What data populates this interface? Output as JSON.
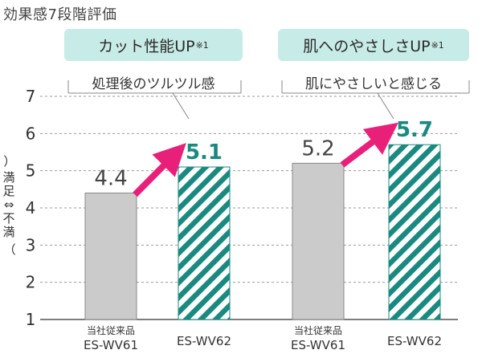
{
  "heading": "効果感7段階評価",
  "groups": [
    {
      "banner": "カット性能UP",
      "banner_note": "※1",
      "caption": "処理後のツルツル感"
    },
    {
      "banner": "肌へのやさしさUP",
      "banner_note": "※1",
      "caption": "肌にやさしいと感じる"
    }
  ],
  "y_axis_label": [
    "満",
    "足",
    "⇔",
    "不",
    "満"
  ],
  "colors": {
    "banner_bg": "#c7ebe6",
    "legacy_bar": "#cbcbcb",
    "new_bar_stripe": "#1a8a80",
    "new_value_text": "#1a8a80",
    "arrow": "#e8207a"
  },
  "chart_data": {
    "type": "bar",
    "ylim": [
      1,
      7
    ],
    "y_ticks": [
      1,
      2,
      3,
      4,
      5,
      6,
      7
    ],
    "grid": true,
    "groups": [
      {
        "title": "カット性能UP※1 処理後のツルツル感",
        "bars": [
          {
            "label_top": "当社従来品",
            "label": "ES-WV61",
            "value": 4.4,
            "value_text": "4.4",
            "style": "solid-gray"
          },
          {
            "label_top": "",
            "label": "ES-WV62",
            "value": 5.1,
            "value_text": "5.1",
            "style": "teal-stripes"
          }
        ]
      },
      {
        "title": "肌へのやさしさUP※1 肌にやさしいと感じる",
        "bars": [
          {
            "label_top": "当社従来品",
            "label": "ES-WV61",
            "value": 5.2,
            "value_text": "5.2",
            "style": "solid-gray"
          },
          {
            "label_top": "",
            "label": "ES-WV62",
            "value": 5.7,
            "value_text": "5.7",
            "style": "teal-stripes"
          }
        ]
      }
    ]
  }
}
